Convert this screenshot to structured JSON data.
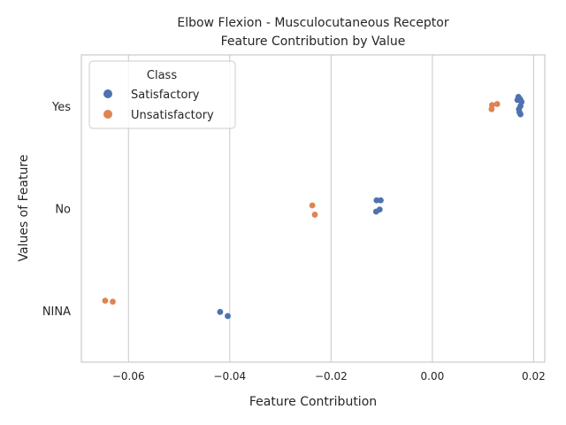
{
  "chart_data": {
    "type": "scatter",
    "title_line1": "Elbow Flexion - Musculocutaneous Receptor",
    "title_line2": "Feature Contribution by Value",
    "xlabel": "Feature Contribution",
    "ylabel": "Values of Feature",
    "xlim": [
      -0.0693,
      0.0222
    ],
    "x_ticks": [
      {
        "value": -0.06,
        "label": "−0.06"
      },
      {
        "value": -0.04,
        "label": "−0.04"
      },
      {
        "value": -0.02,
        "label": "−0.02"
      },
      {
        "value": 0.0,
        "label": "0.00"
      },
      {
        "value": 0.02,
        "label": "0.02"
      }
    ],
    "categories": [
      "Yes",
      "No",
      "NINA"
    ],
    "grid": true,
    "legend": {
      "title": "Class",
      "position": "top-left",
      "entries": [
        {
          "name": "Satisfactory",
          "color": "#4c72b0"
        },
        {
          "name": "Unsatisfactory",
          "color": "#dd8452"
        }
      ]
    },
    "series": [
      {
        "name": "Satisfactory",
        "color": "#4c72b0",
        "points": [
          {
            "category": "Yes",
            "jitter": -0.09,
            "x": 0.017
          },
          {
            "category": "Yes",
            "jitter": -0.07,
            "x": 0.0173
          },
          {
            "category": "Yes",
            "jitter": -0.05,
            "x": 0.0175
          },
          {
            "category": "Yes",
            "jitter": -0.06,
            "x": 0.0168
          },
          {
            "category": "Yes",
            "jitter": -0.04,
            "x": 0.0176
          },
          {
            "category": "Yes",
            "jitter": 0.0,
            "x": 0.0174
          },
          {
            "category": "Yes",
            "jitter": 0.03,
            "x": 0.0171
          },
          {
            "category": "Yes",
            "jitter": 0.06,
            "x": 0.0172
          },
          {
            "category": "Yes",
            "jitter": 0.08,
            "x": 0.0174
          },
          {
            "category": "No",
            "jitter": -0.08,
            "x": -0.011
          },
          {
            "category": "No",
            "jitter": -0.08,
            "x": -0.0102
          },
          {
            "category": "No",
            "jitter": 0.01,
            "x": -0.0104
          },
          {
            "category": "No",
            "jitter": 0.03,
            "x": -0.0111
          },
          {
            "category": "NINA",
            "jitter": 0.01,
            "x": -0.0419
          },
          {
            "category": "NINA",
            "jitter": 0.05,
            "x": -0.0404
          }
        ]
      },
      {
        "name": "Unsatisfactory",
        "color": "#dd8452",
        "points": [
          {
            "category": "Yes",
            "jitter": -0.02,
            "x": 0.0128
          },
          {
            "category": "Yes",
            "jitter": -0.01,
            "x": 0.0118
          },
          {
            "category": "Yes",
            "jitter": 0.03,
            "x": 0.0117
          },
          {
            "category": "No",
            "jitter": -0.03,
            "x": -0.0237
          },
          {
            "category": "No",
            "jitter": 0.06,
            "x": -0.0232
          },
          {
            "category": "NINA",
            "jitter": -0.1,
            "x": -0.0646
          },
          {
            "category": "NINA",
            "jitter": -0.09,
            "x": -0.0631
          }
        ]
      }
    ]
  }
}
